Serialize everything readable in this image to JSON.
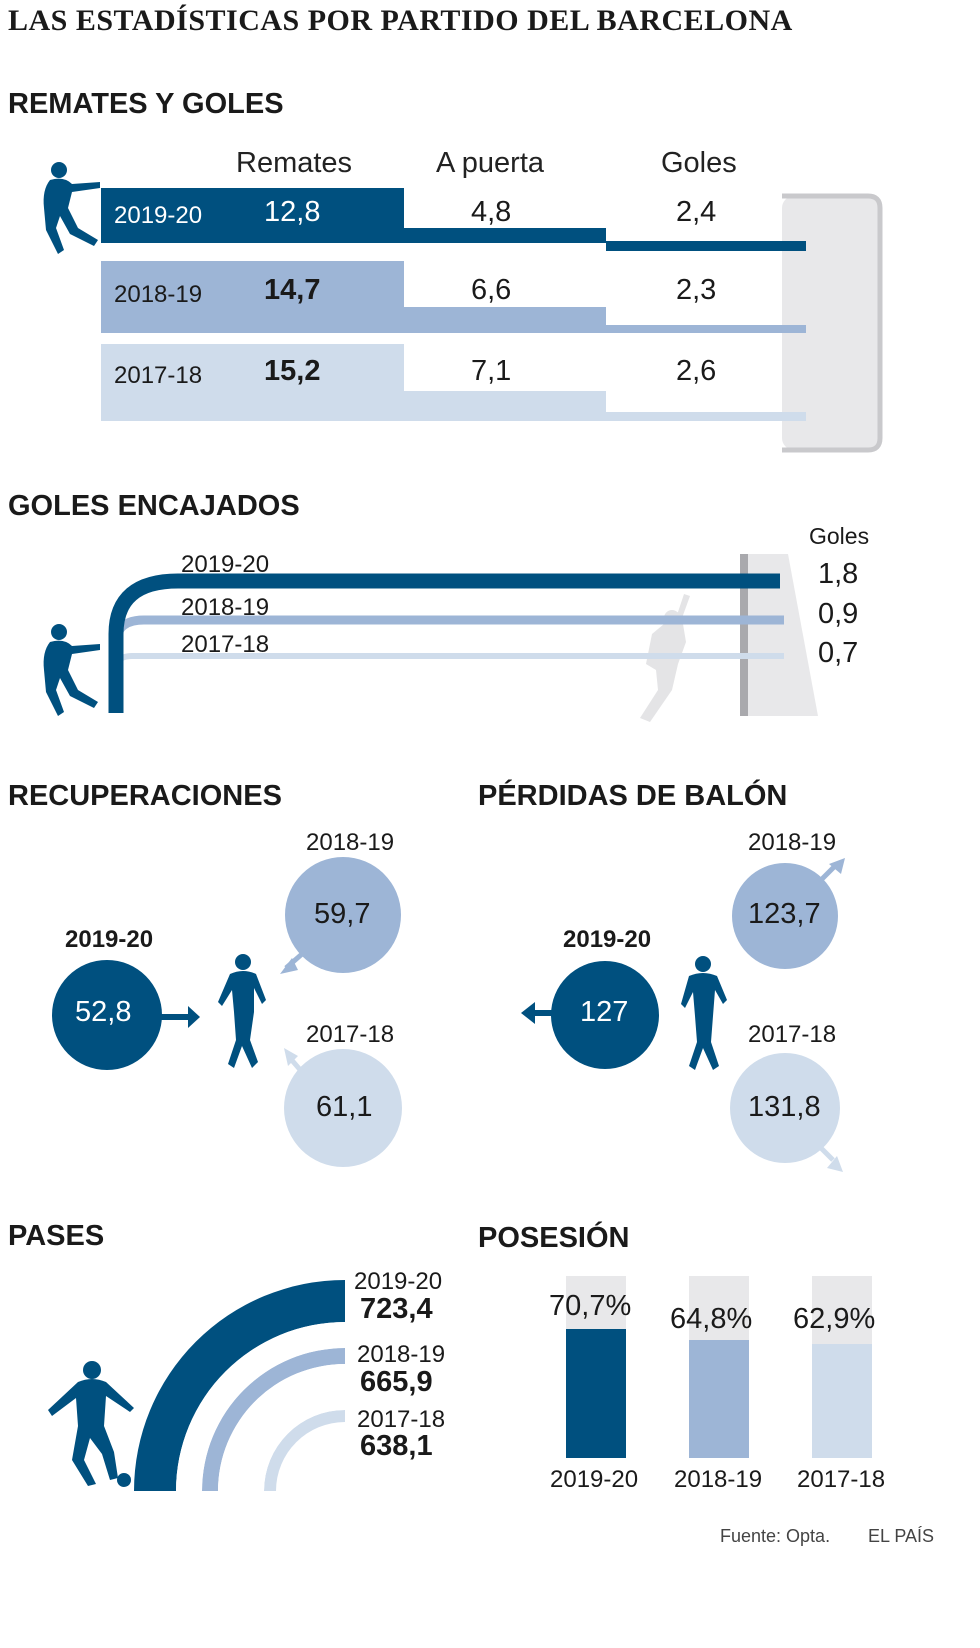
{
  "title": "LAS ESTADÍSTICAS POR PARTIDO DEL BARCELONA",
  "colors": {
    "dark": "#00507f",
    "mid": "#9db5d6",
    "light": "#cfdceb",
    "goal": "#e8e8ea",
    "goal_frame": "#c9c9cc"
  },
  "icons": {
    "kicker": "football-kicker-icon",
    "goalkeeper": "goalkeeper-icon",
    "player": "player-icon",
    "dribbler": "dribbler-icon",
    "arrow": "arrow-icon"
  },
  "chart_data": [
    {
      "type": "bar",
      "title": "REMATES Y GOLES",
      "headers": [
        "Remates",
        "A puerta",
        "Goles"
      ],
      "series": [
        {
          "name": "2019-20",
          "values": [
            12.8,
            4.8,
            2.4
          ],
          "labels": [
            "12,8",
            "4,8",
            "2,4"
          ]
        },
        {
          "name": "2018-19",
          "values": [
            14.7,
            6.6,
            2.3
          ],
          "labels": [
            "14,7",
            "6,6",
            "2,3"
          ]
        },
        {
          "name": "2017-18",
          "values": [
            15.2,
            7.1,
            2.6
          ],
          "labels": [
            "15,2",
            "7,1",
            "2,6"
          ]
        }
      ]
    },
    {
      "type": "line",
      "title": "GOLES ENCAJADOS",
      "value_header": "Goles",
      "series": [
        {
          "name": "2019-20",
          "value": 1.8,
          "label": "1,8"
        },
        {
          "name": "2018-19",
          "value": 0.9,
          "label": "0,9"
        },
        {
          "name": "2017-18",
          "value": 0.7,
          "label": "0,7"
        }
      ]
    },
    {
      "type": "scatter",
      "title": "RECUPERACIONES",
      "series": [
        {
          "name": "2019-20",
          "value": 52.8,
          "label": "52,8"
        },
        {
          "name": "2018-19",
          "value": 59.7,
          "label": "59,7"
        },
        {
          "name": "2017-18",
          "value": 61.1,
          "label": "61,1"
        }
      ]
    },
    {
      "type": "scatter",
      "title": "PÉRDIDAS DE BALÓN",
      "series": [
        {
          "name": "2019-20",
          "value": 127,
          "label": "127"
        },
        {
          "name": "2018-19",
          "value": 123.7,
          "label": "123,7"
        },
        {
          "name": "2017-18",
          "value": 131.8,
          "label": "131,8"
        }
      ]
    },
    {
      "type": "area",
      "title": "PASES",
      "series": [
        {
          "name": "2019-20",
          "value": 723.4,
          "label": "723,4"
        },
        {
          "name": "2018-19",
          "value": 665.9,
          "label": "665,9"
        },
        {
          "name": "2017-18",
          "value": 638.1,
          "label": "638,1"
        }
      ]
    },
    {
      "type": "bar",
      "title": "POSESIÓN",
      "series": [
        {
          "name": "2019-20",
          "value": 70.7,
          "label": "70,7%"
        },
        {
          "name": "2018-19",
          "value": 64.8,
          "label": "64,8%"
        },
        {
          "name": "2017-18",
          "value": 62.9,
          "label": "62,9%"
        }
      ],
      "ylim": [
        0,
        100
      ]
    }
  ],
  "footer": {
    "source": "Fuente: Opta.",
    "brand": "EL PAÍS"
  }
}
